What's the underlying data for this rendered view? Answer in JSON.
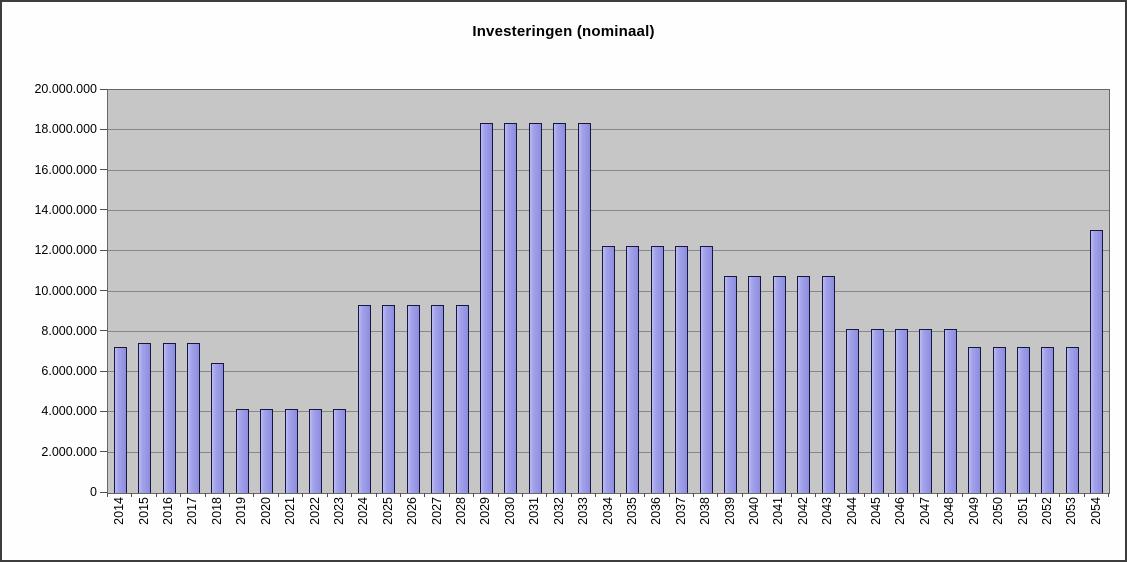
{
  "chart": {
    "title": "Investeringen (nominaal)"
  },
  "chart_data": {
    "type": "bar",
    "title": "Investeringen (nominaal)",
    "xlabel": "",
    "ylabel": "",
    "ylim": [
      0,
      20000000
    ],
    "ytick_step": 2000000,
    "ytick_labels": [
      "0",
      "2.000.000",
      "4.000.000",
      "6.000.000",
      "8.000.000",
      "10.000.000",
      "12.000.000",
      "14.000.000",
      "16.000.000",
      "18.000.000",
      "20.000.000"
    ],
    "grid": true,
    "legend": "none",
    "categories": [
      "2014",
      "2015",
      "2016",
      "2017",
      "2018",
      "2019",
      "2020",
      "2021",
      "2022",
      "2023",
      "2024",
      "2025",
      "2026",
      "2027",
      "2028",
      "2029",
      "2030",
      "2031",
      "2032",
      "2033",
      "2034",
      "2035",
      "2036",
      "2037",
      "2038",
      "2039",
      "2040",
      "2041",
      "2042",
      "2043",
      "2044",
      "2045",
      "2046",
      "2047",
      "2048",
      "2049",
      "2050",
      "2051",
      "2052",
      "2053",
      "2054"
    ],
    "values": [
      7200000,
      7400000,
      7400000,
      7400000,
      6400000,
      4100000,
      4100000,
      4100000,
      4100000,
      4100000,
      9300000,
      9300000,
      9300000,
      9300000,
      9300000,
      18300000,
      18300000,
      18300000,
      18300000,
      18300000,
      12200000,
      12200000,
      12200000,
      12200000,
      12200000,
      10700000,
      10700000,
      10700000,
      10700000,
      10700000,
      8100000,
      8100000,
      8100000,
      8100000,
      8100000,
      7200000,
      7200000,
      7200000,
      7200000,
      7200000,
      13000000
    ],
    "colors": {
      "bar_fill": "#9a9ae4",
      "bar_fill_highlight": "#bcbcf2",
      "bar_border": "#16163e",
      "plot_background": "#c6c6c6",
      "gridline": "#878787",
      "axis": "#4f4f4f",
      "chart_background": "#fefefe",
      "outer_border": "#3d3d3d",
      "title_text": "#000000"
    }
  }
}
